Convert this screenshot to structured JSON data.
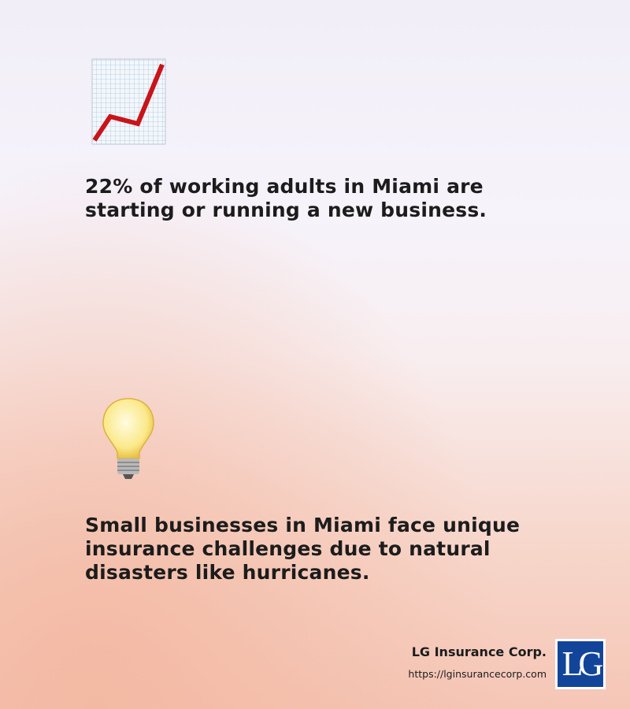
{
  "sections": [
    {
      "lines": [
        "22% of working adults in Miami are",
        "starting or running a new business."
      ]
    },
    {
      "lines": [
        "Small businesses in Miami face unique",
        "insurance challenges due to natural",
        "disasters like hurricanes."
      ]
    }
  ],
  "footer": {
    "company": "LG Insurance Corp.",
    "url": "https://lginsurancecorp.com",
    "logo": "LG"
  }
}
